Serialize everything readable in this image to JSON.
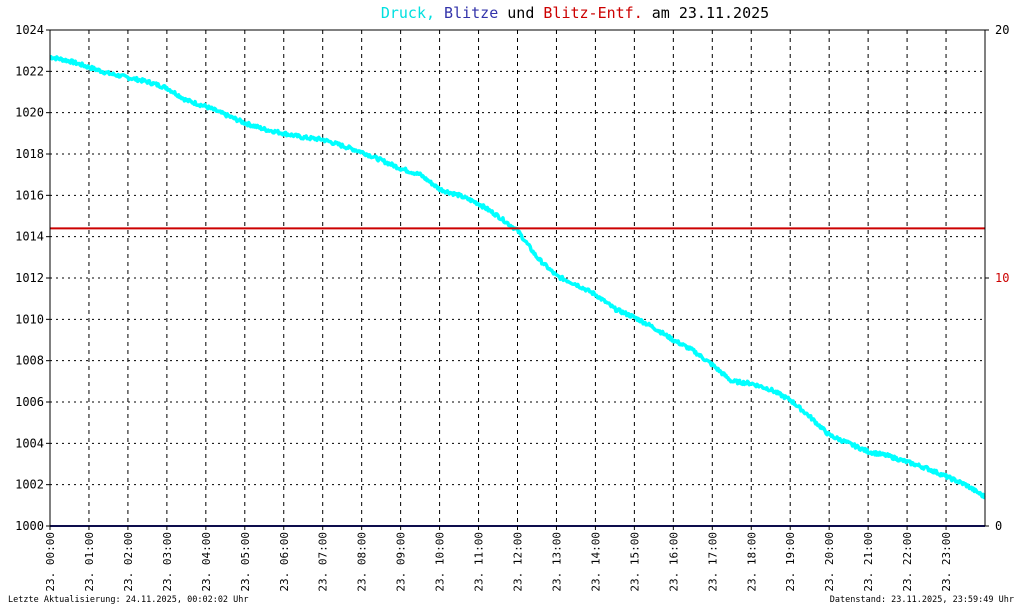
{
  "title": {
    "part1": "Druck,",
    "part2": "Blitze",
    "part3": "und",
    "part4": "Blitz-Entf.",
    "part5": "am 23.11.2025"
  },
  "footer": {
    "left": "Letzte Aktualisierung: 24.11.2025, 00:02:02 Uhr",
    "right": "Datenstand: 23.11.2025, 23:59:49 Uhr"
  },
  "colors": {
    "druck": "#00ffff",
    "blitze": "#1a1a99",
    "blitz_entf": "#cc0000",
    "axis": "#000000"
  },
  "chart_data": {
    "type": "line",
    "title": "Druck, Blitze und Blitz-Entf. am 23.11.2025",
    "x_ticks": [
      "23. 00:00",
      "23. 01:00",
      "23. 02:00",
      "23. 03:00",
      "23. 04:00",
      "23. 05:00",
      "23. 06:00",
      "23. 07:00",
      "23. 08:00",
      "23. 09:00",
      "23. 10:00",
      "23. 11:00",
      "23. 12:00",
      "23. 13:00",
      "23. 14:00",
      "23. 15:00",
      "23. 16:00",
      "23. 17:00",
      "23. 18:00",
      "23. 19:00",
      "23. 20:00",
      "23. 21:00",
      "23. 22:00",
      "23. 23:00"
    ],
    "x_range": [
      0,
      24
    ],
    "y_left_range": [
      1000,
      1024
    ],
    "y_left_ticks": [
      "1000",
      "1002",
      "1004",
      "1006",
      "1008",
      "1010",
      "1012",
      "1014",
      "1016",
      "1018",
      "1020",
      "1022",
      "1024"
    ],
    "y_right_range": [
      0,
      20
    ],
    "y_right_ticks": [
      "0",
      "10",
      "20"
    ],
    "grid": true,
    "series": [
      {
        "name": "Druck",
        "axis": "left",
        "color": "#00ffff",
        "x": [
          0,
          0.5,
          1,
          1.5,
          2,
          2.5,
          3,
          3.5,
          4,
          4.5,
          5,
          5.5,
          6,
          6.5,
          7,
          7.5,
          8,
          8.5,
          9,
          9.5,
          10,
          10.5,
          11,
          11.5,
          12,
          12.5,
          13,
          13.5,
          14,
          14.5,
          15,
          15.5,
          16,
          16.5,
          17,
          17.5,
          18,
          18.5,
          19,
          19.5,
          20,
          20.5,
          21,
          21.5,
          22,
          22.5,
          23,
          23.5,
          24
        ],
        "y": [
          1022.7,
          1022.5,
          1022.2,
          1021.9,
          1021.7,
          1021.5,
          1021.2,
          1020.6,
          1020.3,
          1019.9,
          1019.5,
          1019.2,
          1019.0,
          1018.8,
          1018.7,
          1018.4,
          1018.1,
          1017.7,
          1017.3,
          1017.0,
          1016.3,
          1016.0,
          1015.6,
          1015.0,
          1014.3,
          1013.0,
          1012.1,
          1011.7,
          1011.2,
          1010.5,
          1010.1,
          1009.6,
          1009.0,
          1008.5,
          1007.8,
          1007.0,
          1006.9,
          1006.6,
          1006.1,
          1005.3,
          1004.4,
          1004.0,
          1003.6,
          1003.4,
          1003.1,
          1002.8,
          1002.4,
          1002.0,
          1001.4
        ]
      },
      {
        "name": "Blitze",
        "axis": "right",
        "color": "#1a1a99",
        "x": [
          0,
          24
        ],
        "y": [
          0,
          0
        ]
      },
      {
        "name": "Blitz-Entf.",
        "axis": "right",
        "color": "#cc0000",
        "x": [
          0,
          24
        ],
        "y": [
          12,
          12
        ]
      }
    ]
  }
}
